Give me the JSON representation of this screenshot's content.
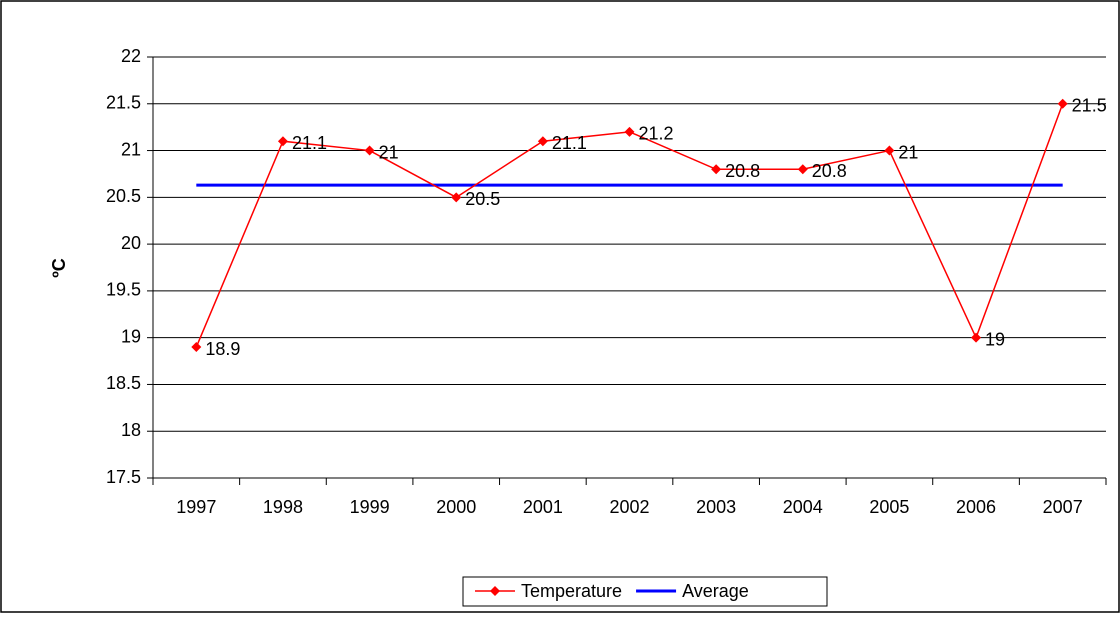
{
  "chart_data": {
    "type": "line",
    "y_label": "ºC",
    "categories": [
      "1997",
      "1998",
      "1999",
      "2000",
      "2001",
      "2002",
      "2003",
      "2004",
      "2005",
      "2006",
      "2007"
    ],
    "series": [
      {
        "name": "Temperature",
        "color": "#ff0000",
        "marker": "diamond",
        "data_labels": true,
        "values": [
          18.9,
          21.1,
          21,
          20.5,
          21.1,
          21.2,
          20.8,
          20.8,
          21,
          19,
          21.5
        ]
      },
      {
        "name": "Average",
        "color": "#0000ff",
        "marker": null,
        "data_labels": false,
        "values": [
          20.63,
          20.63,
          20.63,
          20.63,
          20.63,
          20.63,
          20.63,
          20.63,
          20.63,
          20.63,
          20.63
        ]
      }
    ],
    "ylim": [
      17.5,
      22
    ],
    "yticks": [
      17.5,
      18,
      18.5,
      19,
      19.5,
      20,
      20.5,
      21,
      21.5,
      22
    ],
    "grid": true,
    "legend": "bottom"
  }
}
